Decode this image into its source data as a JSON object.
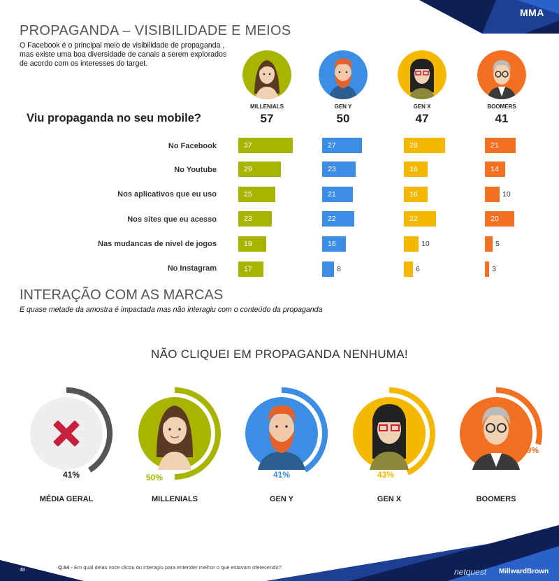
{
  "header": {
    "title": "PROPAGANDA – VISIBILIDADE E MEIOS",
    "intro": "O Facebook é o principal meio de visibilidade de propaganda , mas existe uma boa diversidade de canais a serem explorados de acordo com os interesses do target.",
    "logo": "MMA"
  },
  "colors": {
    "millennials": "#a8b400",
    "geny": "#3b8ee4",
    "genx": "#f5b800",
    "boomers": "#f36f21",
    "grey_ring": "#555555",
    "x_mark": "#c8203c"
  },
  "generations": [
    {
      "label": "MILLENIALS",
      "total": "57",
      "color_key": "millennials",
      "icon": "millennial-woman-avatar"
    },
    {
      "label": "GEN Y",
      "total": "50",
      "color_key": "geny",
      "icon": "bearded-man-avatar"
    },
    {
      "label": "GEN X",
      "total": "47",
      "color_key": "genx",
      "icon": "woman-with-glasses-avatar"
    },
    {
      "label": "BOOMERS",
      "total": "41",
      "color_key": "boomers",
      "icon": "older-man-avatar"
    }
  ],
  "chart_data": [
    {
      "type": "bar",
      "title": "Viu propaganda no seu mobile?",
      "categories": [
        "No Facebook",
        "No Youtube",
        "Nos aplicativos que eu uso",
        "Nos sites que eu acesso",
        "Nas mudancas de nivel de jogos",
        "No Instagram"
      ],
      "series": [
        {
          "name": "MILLENIALS",
          "values": [
            37,
            29,
            25,
            23,
            19,
            17
          ]
        },
        {
          "name": "GEN Y",
          "values": [
            27,
            23,
            21,
            22,
            16,
            8
          ]
        },
        {
          "name": "GEN X",
          "values": [
            28,
            16,
            16,
            22,
            10,
            6
          ]
        },
        {
          "name": "BOOMERS",
          "values": [
            21,
            14,
            10,
            20,
            5,
            3
          ]
        }
      ]
    },
    {
      "type": "pie",
      "title": "NÃO CLIQUEI EM PROPAGANDA  NENHUMA!",
      "categories": [
        "MÉDIA GERAL",
        "MILLENIALS",
        "GEN Y",
        "GEN X",
        "BOOMERS"
      ],
      "values": [
        41,
        50,
        41,
        43,
        29
      ],
      "labels": [
        "41%",
        "50%",
        "41%",
        "43%",
        "29%"
      ]
    }
  ],
  "section2": {
    "title": "INTERAÇÃO COM AS MARCAS",
    "subtitle": "E  quase metade da amostra é impactada mas não interagiu com o conteúdo  da propaganda"
  },
  "footer": {
    "page": "48",
    "footnote_prefix": "Q.54 -",
    "footnote": "Em qual delas voce clicou ou interagiu para entender melhor o que estavam oferecendo?",
    "logo_netquest": "netquest",
    "logo_mb": "MillwardBrown"
  }
}
